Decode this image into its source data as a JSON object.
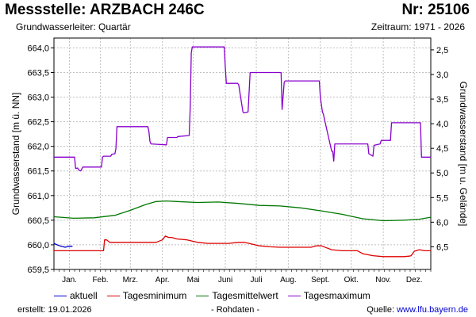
{
  "header": {
    "title": "Messstelle: ARZBACH 246C",
    "number": "Nr: 25106",
    "aquifer": "Grundwasserleiter: Quartär",
    "period": "Zeitraum: 1971 - 2026"
  },
  "footer": {
    "created_label": "erstellt:",
    "created_date": "19.01.2026",
    "raw_note": "- Rohdaten -",
    "source_label": "Quelle:",
    "source_url": "www.lfu.bayern.de"
  },
  "colors": {
    "aktuell": "#0000cc",
    "min": "#dd0000",
    "mean": "#007700",
    "max": "#8800cc",
    "grid": "#c0c0c0"
  },
  "chart_data": {
    "type": "line",
    "xlabel": "",
    "ylabel": "Grundwasserstand [m ü. NN]",
    "ylabel_right": "Grundwasserstand [m u. Gelände]",
    "x_unit": "day_of_year",
    "xlim": [
      1,
      366
    ],
    "ylim": [
      659.5,
      664.2
    ],
    "ylim_right": [
      6.96,
      2.26
    ],
    "grid": true,
    "legend": "bottom",
    "y_ticks": [
      "659,5",
      "660,0",
      "660,5",
      "661,0",
      "661,5",
      "662,0",
      "662,5",
      "663,0",
      "663,5",
      "664,0"
    ],
    "y_tick_values": [
      659.5,
      660.0,
      660.5,
      661.0,
      661.5,
      662.0,
      662.5,
      663.0,
      663.5,
      664.0
    ],
    "y_ticks_right": [
      "2,5",
      "3,0",
      "3,5",
      "4,0",
      "4,5",
      "5,0",
      "5,5",
      "6,0",
      "6,5"
    ],
    "y_tick_values_right": [
      2.5,
      3.0,
      3.5,
      4.0,
      4.5,
      5.0,
      5.5,
      6.0,
      6.5
    ],
    "months": [
      "Jan.",
      "Feb.",
      "Mrz.",
      "Apr.",
      "Mai",
      "Juni",
      "Juli",
      "Aug.",
      "Sept.",
      "Okt.",
      "Nov.",
      "Dez."
    ],
    "month_centers": [
      16,
      46,
      75,
      106,
      136,
      167,
      197,
      228,
      259,
      289,
      320,
      350
    ],
    "series": [
      {
        "key": "aktuell",
        "name": "aktuell",
        "color": "#0000cc",
        "x": [
          1,
          4,
          8,
          12,
          15,
          19
        ],
        "y": [
          660.03,
          660.0,
          659.97,
          659.95,
          659.97,
          659.97
        ]
      },
      {
        "key": "min",
        "name": "Tagesminimum",
        "color": "#dd0000",
        "x": [
          1,
          10,
          20,
          30,
          40,
          49,
          50,
          52,
          55,
          60,
          70,
          80,
          90,
          100,
          106,
          109,
          112,
          115,
          120,
          130,
          140,
          150,
          155,
          160,
          170,
          180,
          185,
          190,
          200,
          210,
          220,
          230,
          240,
          245,
          250,
          255,
          260,
          270,
          280,
          290,
          295,
          300,
          310,
          320,
          330,
          340,
          345,
          347,
          350,
          355,
          360,
          366
        ],
        "y": [
          659.88,
          659.88,
          659.88,
          659.88,
          659.88,
          659.88,
          660.1,
          660.1,
          660.05,
          660.05,
          660.05,
          660.05,
          660.05,
          660.05,
          660.1,
          660.18,
          660.15,
          660.15,
          660.12,
          660.1,
          660.05,
          660.03,
          660.03,
          660.03,
          660.03,
          660.05,
          660.05,
          660.03,
          659.98,
          659.96,
          659.95,
          659.95,
          659.95,
          659.95,
          659.95,
          659.98,
          659.98,
          659.9,
          659.88,
          659.88,
          659.88,
          659.82,
          659.78,
          659.76,
          659.76,
          659.76,
          659.77,
          659.78,
          659.87,
          659.9,
          659.88,
          659.88
        ]
      },
      {
        "key": "mean",
        "name": "Tagesmittelwert",
        "color": "#007700",
        "x": [
          1,
          20,
          40,
          60,
          75,
          90,
          100,
          110,
          120,
          140,
          160,
          180,
          200,
          220,
          240,
          260,
          280,
          300,
          320,
          340,
          355,
          366
        ],
        "y": [
          660.57,
          660.54,
          660.55,
          660.6,
          660.7,
          660.82,
          660.88,
          660.89,
          660.88,
          660.86,
          660.87,
          660.84,
          660.8,
          660.79,
          660.75,
          660.69,
          660.62,
          660.53,
          660.49,
          660.5,
          660.52,
          660.56
        ]
      },
      {
        "key": "max",
        "name": "Tagesmaximum",
        "color": "#8800cc",
        "x": [
          1,
          21,
          22,
          24,
          25,
          27,
          29,
          30,
          31,
          47,
          48,
          49,
          56,
          57,
          60,
          61,
          62,
          63,
          92,
          93,
          94,
          95,
          110,
          111,
          120,
          121,
          132,
          133,
          134,
          135,
          166,
          167,
          168,
          179,
          180,
          184,
          185,
          189,
          191,
          221,
          222,
          224,
          225,
          258,
          259,
          261,
          262,
          263,
          270,
          271,
          272,
          273,
          274,
          305,
          306,
          310,
          311,
          317,
          318,
          327,
          328,
          356,
          357,
          366
        ],
        "y": [
          661.78,
          661.78,
          661.55,
          661.56,
          661.52,
          661.5,
          661.58,
          661.58,
          661.58,
          661.58,
          661.78,
          661.8,
          661.8,
          661.84,
          661.85,
          661.95,
          662.4,
          662.4,
          662.4,
          662.3,
          662.1,
          662.05,
          662.03,
          662.18,
          662.18,
          662.2,
          662.22,
          662.8,
          663.9,
          664.02,
          664.02,
          663.6,
          663.28,
          663.28,
          663.25,
          662.7,
          662.68,
          662.7,
          663.5,
          663.5,
          662.75,
          663.3,
          663.33,
          663.33,
          663.0,
          662.7,
          662.65,
          662.55,
          661.9,
          661.9,
          661.7,
          662.05,
          662.05,
          662.05,
          661.85,
          661.8,
          662.02,
          662.05,
          662.12,
          662.12,
          662.48,
          662.48,
          661.78,
          661.78
        ]
      }
    ]
  }
}
